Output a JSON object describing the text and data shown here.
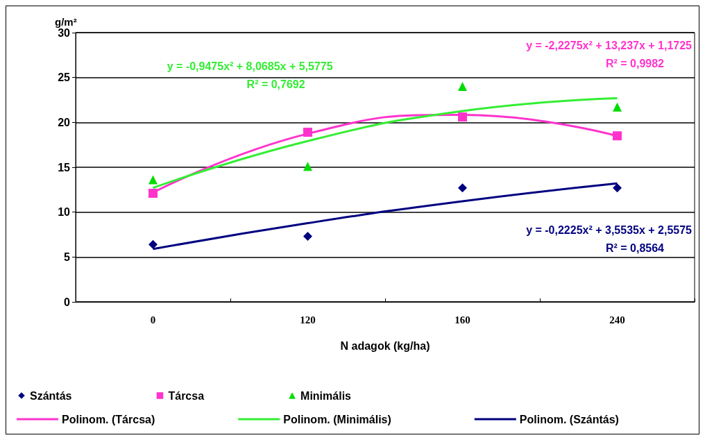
{
  "chart_data": {
    "type": "scatter",
    "xlabel": "N adagok (kg/ha)",
    "ylabel": "g/m²",
    "categories": [
      "0",
      "120",
      "160",
      "240"
    ],
    "ylim": [
      0,
      30
    ],
    "yticks": [
      0,
      5,
      10,
      15,
      20,
      25,
      30
    ],
    "grid": "y",
    "legend": "bottom",
    "series": [
      {
        "name": "Szántás",
        "color": "#000080",
        "marker": "diamond",
        "values": [
          6.4,
          7.3,
          12.7,
          12.7
        ]
      },
      {
        "name": "Tárcsa",
        "color": "#ff33cc",
        "marker": "square",
        "values": [
          12.1,
          18.9,
          20.6,
          18.5
        ]
      },
      {
        "name": "Minimális",
        "color": "#00dd00",
        "marker": "triangle",
        "values": [
          13.6,
          15.1,
          24.0,
          21.7
        ]
      },
      {
        "name": "Polinom. (Tárcsa)",
        "type": "line",
        "color": "#ff33cc",
        "values": [
          12.18,
          18.74,
          20.84,
          18.48
        ]
      },
      {
        "name": "Polinom. (Minimális)",
        "type": "line",
        "color": "#33ee33",
        "values": [
          12.7,
          17.92,
          21.26,
          22.69
        ]
      },
      {
        "name": "Polinom. (Szántás)",
        "type": "line",
        "color": "#000080",
        "values": [
          5.89,
          8.77,
          11.22,
          13.21
        ]
      }
    ],
    "annotations": [
      "y = -2,2275x² + 13,237x + 1,1725",
      "R² = 0,9982",
      "y = -0,9475x² + 8,0685x + 5,5775",
      "R² = 0,7692",
      "y = -0,2225x² + 3,5535x + 2,5575",
      "R² = 0,8564"
    ]
  }
}
